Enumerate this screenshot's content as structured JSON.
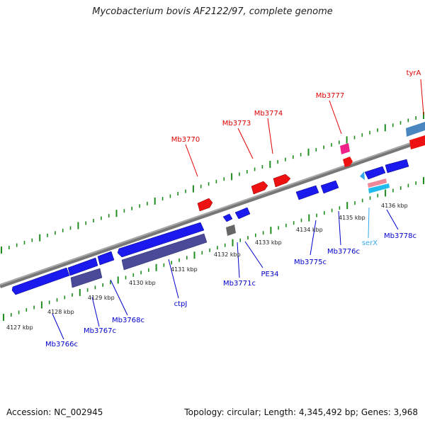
{
  "title": "Mycobacterium bovis AF2122/97, complete genome",
  "footer": {
    "accession": "Accession: NC_002945",
    "summary": "Topology: circular; Length: 4,345,492 bp; Genes: 3,968"
  },
  "colors": {
    "backbone": "#8a8a8a",
    "tick": "#1e8c1e",
    "forward_label": "#e00000",
    "reverse_label": "#0000cc",
    "trna_label": "#33aaee",
    "cds_forward": "#ee1111",
    "cds_reverse": "#1a1aee",
    "cds_other": "#4a4a99"
  },
  "kbp_ticks": [
    "4127 kbp",
    "4128 kbp",
    "4129 kbp",
    "4130 kbp",
    "4131 kbp",
    "4132 kbp",
    "4133 kbp",
    "4134 kbp",
    "4135 kbp",
    "4136 kbp"
  ],
  "gene_labels": [
    {
      "text": "tyrA",
      "strand": "forward"
    },
    {
      "text": "Mb3777",
      "strand": "forward"
    },
    {
      "text": "Mb3774",
      "strand": "forward"
    },
    {
      "text": "Mb3773",
      "strand": "forward"
    },
    {
      "text": "Mb3770",
      "strand": "forward"
    },
    {
      "text": "Mb3778c",
      "strand": "reverse"
    },
    {
      "text": "serX",
      "strand": "trna"
    },
    {
      "text": "Mb3776c",
      "strand": "reverse"
    },
    {
      "text": "Mb3775c",
      "strand": "reverse"
    },
    {
      "text": "PE34",
      "strand": "reverse"
    },
    {
      "text": "Mb3771c",
      "strand": "reverse"
    },
    {
      "text": "ctpJ",
      "strand": "reverse"
    },
    {
      "text": "Mb3768c",
      "strand": "reverse"
    },
    {
      "text": "Mb3767c",
      "strand": "reverse"
    },
    {
      "text": "Mb3766c",
      "strand": "reverse"
    }
  ]
}
